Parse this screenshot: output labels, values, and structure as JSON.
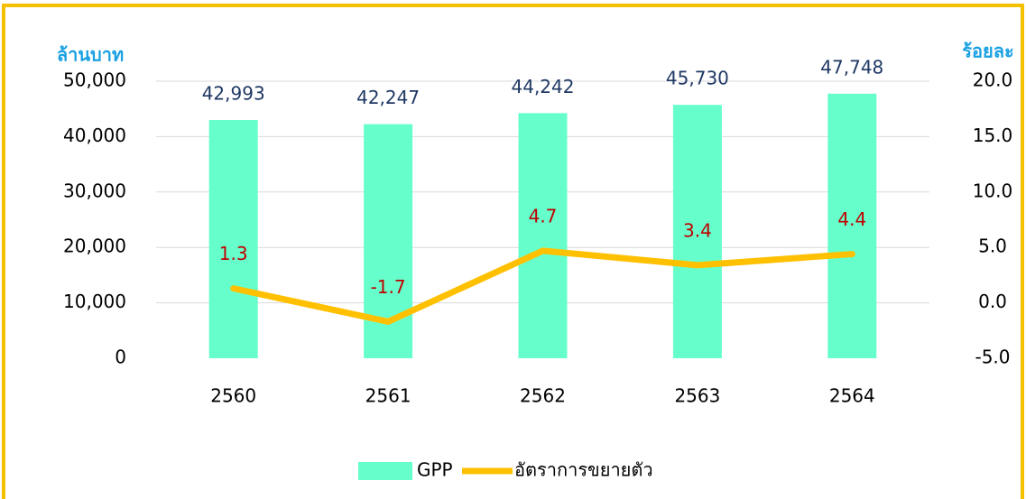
{
  "chart_data": {
    "type": "bar",
    "categories": [
      "2560",
      "2561",
      "2562",
      "2563",
      "2564"
    ],
    "ylabel": "ล้านบาท",
    "y2label": "ร้อยละ",
    "ylim": [
      0,
      50000
    ],
    "yticks": [
      0,
      {
        "value": 10000,
        "label": "10,000"
      },
      {
        "value": 20000,
        "label": "20,000"
      },
      {
        "value": 30000,
        "label": "30,000"
      },
      {
        "value": 40000,
        "label": "40,000"
      },
      {
        "value": 50000,
        "label": "50,000"
      }
    ],
    "y2lim": [
      -5,
      20
    ],
    "y2ticks": [
      {
        "value": -5,
        "label": "-5.0"
      },
      {
        "value": 0,
        "label": "0.0"
      },
      {
        "value": 5,
        "label": "5.0"
      },
      {
        "value": 10,
        "label": "10.0"
      },
      {
        "value": 15,
        "label": "15.0"
      },
      {
        "value": 20,
        "label": "20.0"
      }
    ],
    "grid": true,
    "legend": "bottom",
    "series": [
      {
        "name": "GPP",
        "type": "bar",
        "color": "#66ffcc",
        "values": [
          42993,
          42247,
          44242,
          45730,
          47748
        ],
        "value_labels": [
          "42,993",
          "42,247",
          "44,242",
          "45,730",
          "47,748"
        ]
      },
      {
        "name": "อัตราการขยายตัว",
        "type": "line",
        "axis": "y2",
        "color": "#ffc000",
        "values": [
          1.3,
          -1.7,
          4.7,
          3.4,
          4.4
        ]
      }
    ]
  }
}
